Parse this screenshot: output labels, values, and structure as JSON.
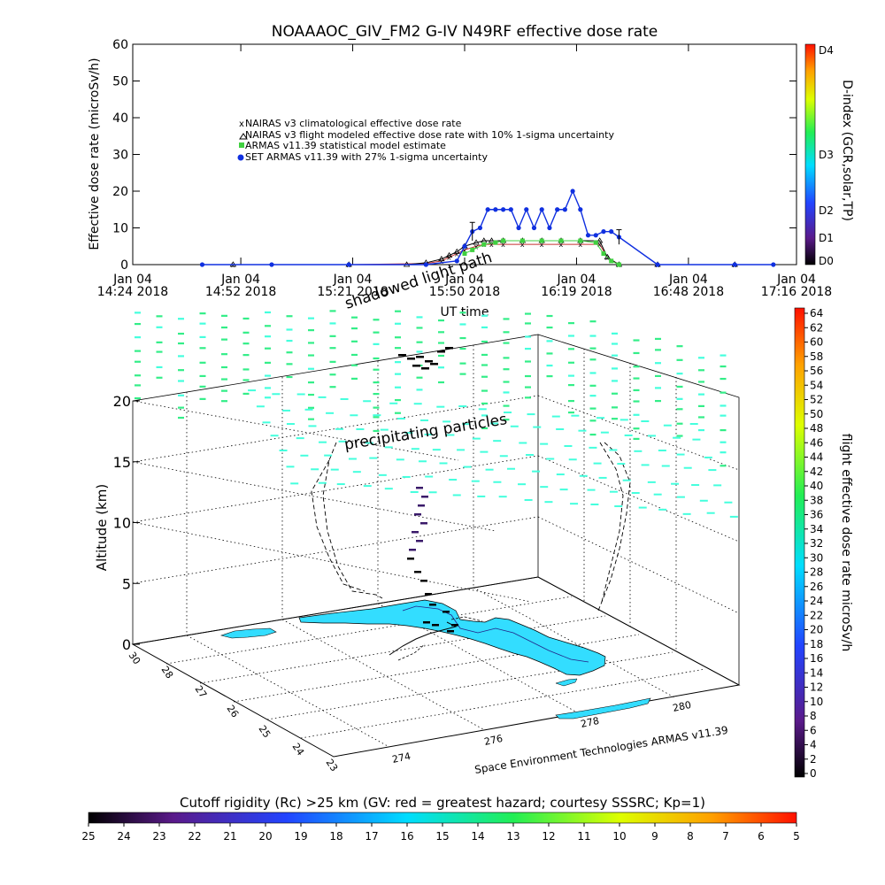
{
  "chart_data": [
    {
      "type": "line",
      "title": "NOAAAOC_GIV_FM2 G-IV    N49RF  effective dose rate",
      "ylabel": "Effective dose rate (microSv/h)",
      "xlabel": "UT time",
      "ylim": [
        0,
        60
      ],
      "yticks": [
        "0",
        "10",
        "20",
        "30",
        "40",
        "50",
        "60"
      ],
      "xticks": [
        {
          "l1": "Jan 04",
          "l2": "14:24 2018",
          "min": 864
        },
        {
          "l1": "Jan 04",
          "l2": "14:52 2018",
          "min": 892
        },
        {
          "l1": "Jan 04",
          "l2": "15:21 2018",
          "min": 921
        },
        {
          "l1": "Jan 04",
          "l2": "15:50 2018",
          "min": 950
        },
        {
          "l1": "Jan 04",
          "l2": "16:19 2018",
          "min": 979
        },
        {
          "l1": "Jan 04",
          "l2": "16:48 2018",
          "min": 1008
        },
        {
          "l1": "Jan 04",
          "l2": "17:16 2018",
          "min": 1036
        }
      ],
      "xlim_minutes": [
        864,
        1036
      ],
      "legend_position": "center-left",
      "series": [
        {
          "name": "NAIRAS v3 climatological effective dose rate",
          "color": "#c83232",
          "marker": "x",
          "x": [
            890,
            920,
            940,
            944,
            946,
            948,
            950,
            953,
            955,
            957,
            960,
            965,
            970,
            975,
            980,
            985,
            987,
            990,
            1000,
            1020
          ],
          "y": [
            0,
            0,
            0.3,
            1,
            2,
            3,
            4,
            5,
            5.5,
            5.5,
            5.5,
            5.5,
            5.5,
            5.5,
            5.5,
            5.5,
            2,
            0,
            0,
            0
          ]
        },
        {
          "name": "NAIRAS v3 flight modeled effective dose rate with 10% 1-sigma uncertainty",
          "color": "#000000",
          "marker": "triangle",
          "x": [
            890,
            920,
            935,
            940,
            944,
            946,
            948,
            950,
            953,
            955,
            957,
            960,
            965,
            970,
            975,
            980,
            985,
            987,
            990,
            1000,
            1020
          ],
          "y": [
            0,
            0,
            0,
            0.5,
            1.5,
            2.5,
            3.5,
            5,
            6,
            6.5,
            6.5,
            6.5,
            6.5,
            6.5,
            6.5,
            6.5,
            6.5,
            2,
            0,
            0,
            0
          ]
        },
        {
          "name": "ARMAS v11.39 statistical model estimate",
          "color": "#40d040",
          "marker": "square",
          "x": [
            950,
            952,
            955,
            958,
            960,
            965,
            970,
            975,
            980,
            984,
            986,
            988,
            990
          ],
          "y": [
            3,
            4,
            5.5,
            6,
            6.5,
            6.5,
            6.5,
            6.5,
            6.5,
            6,
            3,
            1,
            0
          ]
        },
        {
          "name": "SET ARMAS v11.39 with 27% 1-sigma uncertainty",
          "color": "#1030e0",
          "marker": "circle",
          "x": [
            882,
            900,
            920,
            940,
            948,
            950,
            952,
            954,
            956,
            958,
            960,
            962,
            964,
            966,
            968,
            970,
            972,
            974,
            976,
            978,
            980,
            982,
            984,
            986,
            988,
            990,
            1000,
            1020,
            1030
          ],
          "y": [
            0,
            0,
            0,
            0,
            1,
            5,
            9,
            10,
            15,
            15,
            15,
            15,
            10,
            15,
            10,
            15,
            10,
            15,
            15,
            20,
            15,
            8,
            8,
            9,
            9,
            7.5,
            0,
            0,
            0
          ]
        }
      ]
    },
    {
      "type": "scatter",
      "ylabel": "Altitude (km)",
      "zlim": [
        0,
        20
      ],
      "zticks": [
        "0",
        "5",
        "10",
        "15",
        "20"
      ],
      "lat_ticks": [
        "23",
        "24",
        "25",
        "26",
        "27",
        "28",
        "30"
      ],
      "lon_ticks": [
        "274",
        "276",
        "278",
        "280"
      ],
      "annotations": [
        "shadowed light path",
        "precipitating particles"
      ],
      "credit": "Space Environment Technologies ARMAS v11.39"
    }
  ],
  "colorbars": {
    "dindex": {
      "label": "D-index (GCR,solar,TP)",
      "ticks": [
        "D0",
        "D1",
        "D2",
        "D3",
        "D4"
      ]
    },
    "dose": {
      "label": "flight effective dose rate microSv/h",
      "ticks": [
        "0",
        "2",
        "4",
        "6",
        "8",
        "10",
        "12",
        "14",
        "16",
        "18",
        "20",
        "22",
        "24",
        "26",
        "28",
        "30",
        "32",
        "34",
        "36",
        "38",
        "40",
        "42",
        "44",
        "46",
        "48",
        "50",
        "52",
        "54",
        "56",
        "58",
        "60",
        "62",
        "64"
      ]
    },
    "cutoff": {
      "label": "Cutoff rigidity (Rc) >25 km (GV: red = greatest hazard; courtesy SSSRC; Kp=1)",
      "ticks": [
        "25",
        "24",
        "23",
        "22",
        "21",
        "20",
        "19",
        "18",
        "17",
        "16",
        "15",
        "14",
        "13",
        "12",
        "11",
        "10",
        "9",
        "8",
        "7",
        "6",
        "5"
      ]
    }
  },
  "colors": {
    "land": "#33ddff",
    "green_cells": "#33ee88",
    "cyan_cells": "#44ffdd",
    "path": "#000000"
  }
}
